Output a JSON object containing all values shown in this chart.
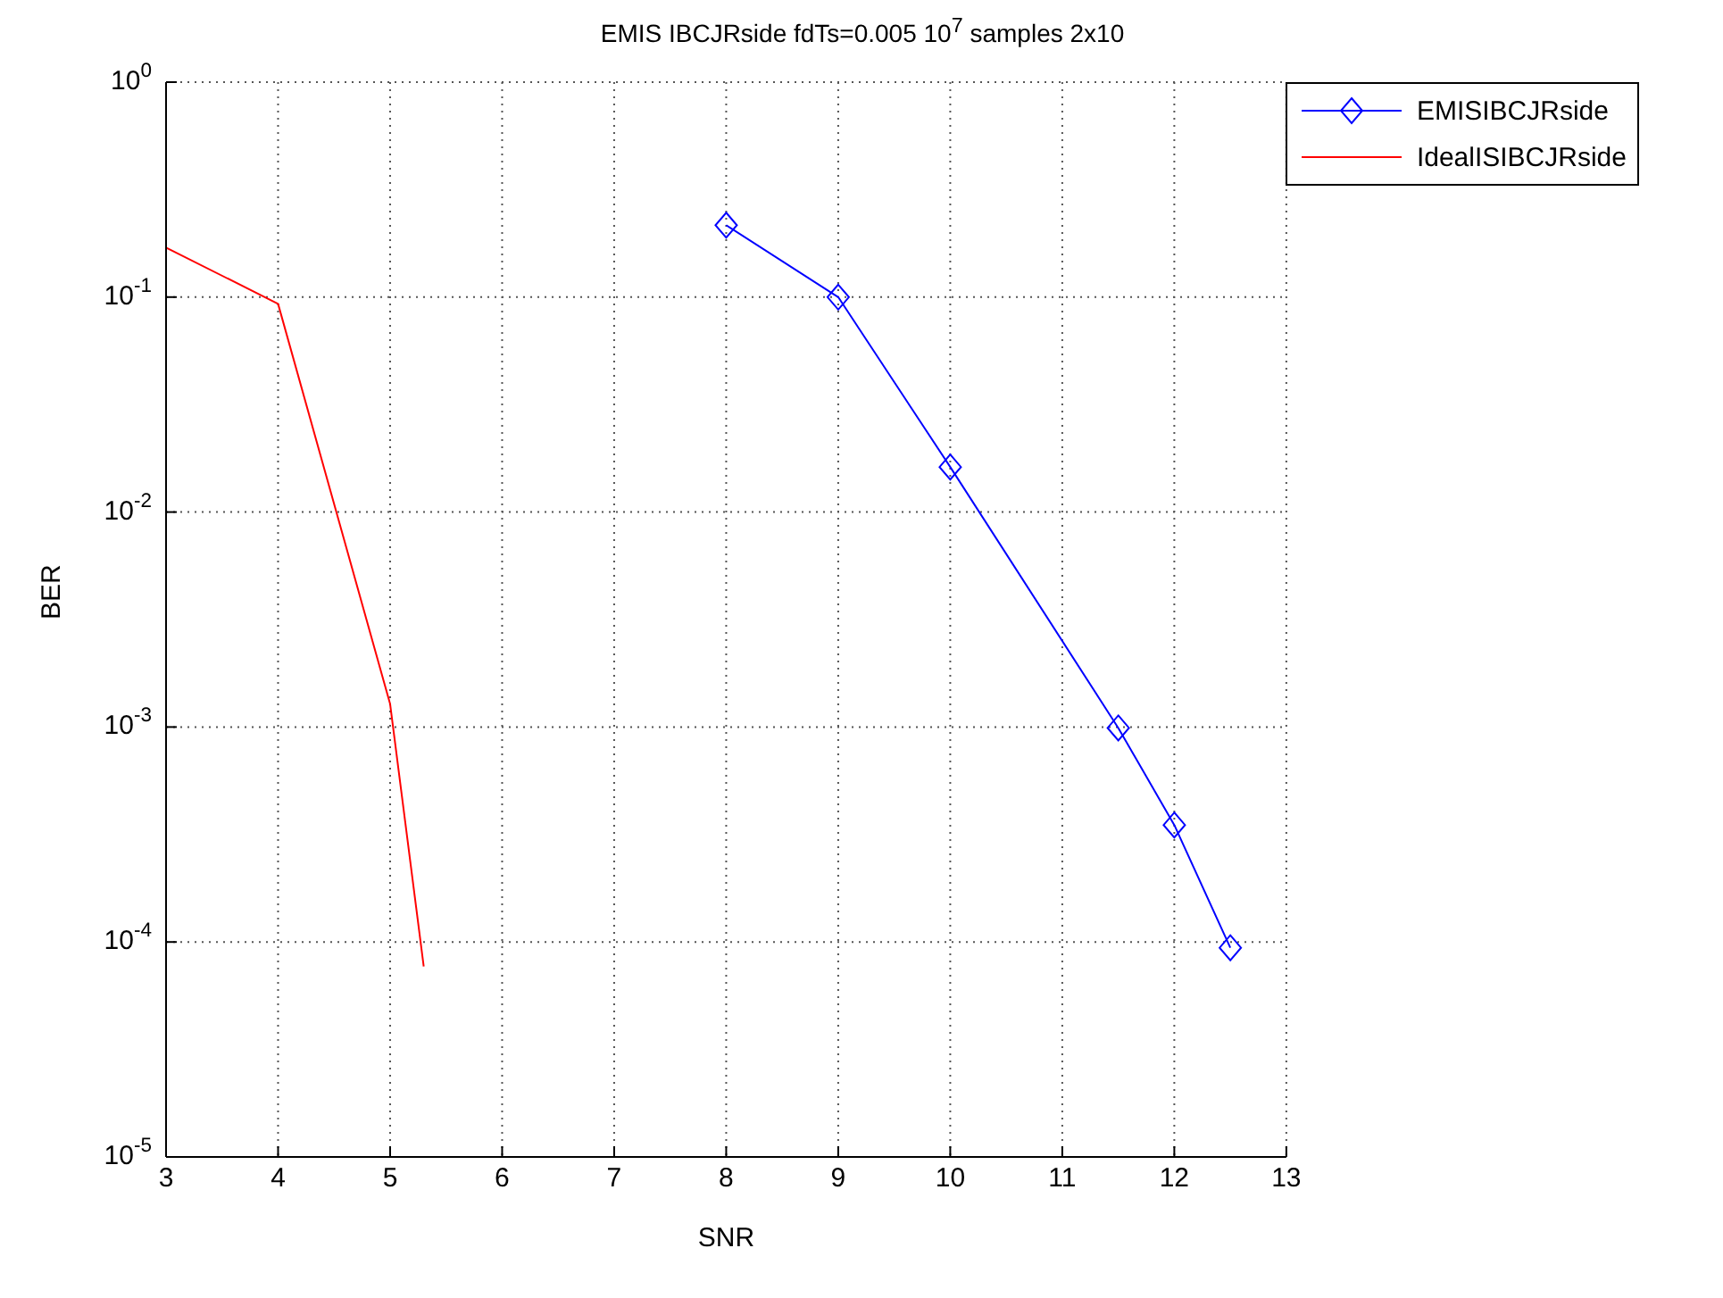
{
  "chart_data": {
    "type": "line",
    "title": "EMIS IBCJRside fdTs=0.005 10$^{7}$ samples 2x10",
    "xlabel": "SNR",
    "ylabel": "BER",
    "log": "y",
    "grid": true,
    "legend": "top right",
    "line_style": "solid",
    "xlim": [
      3,
      13
    ],
    "xticks": [
      3,
      4,
      5,
      6,
      7,
      8,
      9,
      10,
      11,
      12,
      13
    ],
    "ylim": [
      1e-05,
      1
    ],
    "yticks": [
      {
        "value": 1e-05,
        "label": "10$^{-5}$"
      },
      {
        "value": 0.0001,
        "label": "10$^{-4}$"
      },
      {
        "value": 0.001,
        "label": "10$^{-3}$"
      },
      {
        "value": 0.01,
        "label": "10$^{-2}$"
      },
      {
        "value": 0.1,
        "label": "10$^{-1}$"
      },
      {
        "value": 1,
        "label": "10$^{0}$"
      }
    ],
    "series": [
      {
        "name": "EMISIBCJRside",
        "color": "#0000ff",
        "marker": "diamond",
        "x": [
          8,
          9,
          10,
          11.5,
          12,
          12.5
        ],
        "values": [
          0.216,
          0.1,
          0.0162,
          0.00099,
          0.00035,
          9.4e-05
        ]
      },
      {
        "name": "IdealISIBCJRside",
        "color": "#ff0000",
        "marker": "none",
        "x": [
          3,
          4,
          5,
          5.3
        ],
        "values": [
          0.17,
          0.093,
          0.00128,
          7.7e-05
        ]
      }
    ]
  }
}
